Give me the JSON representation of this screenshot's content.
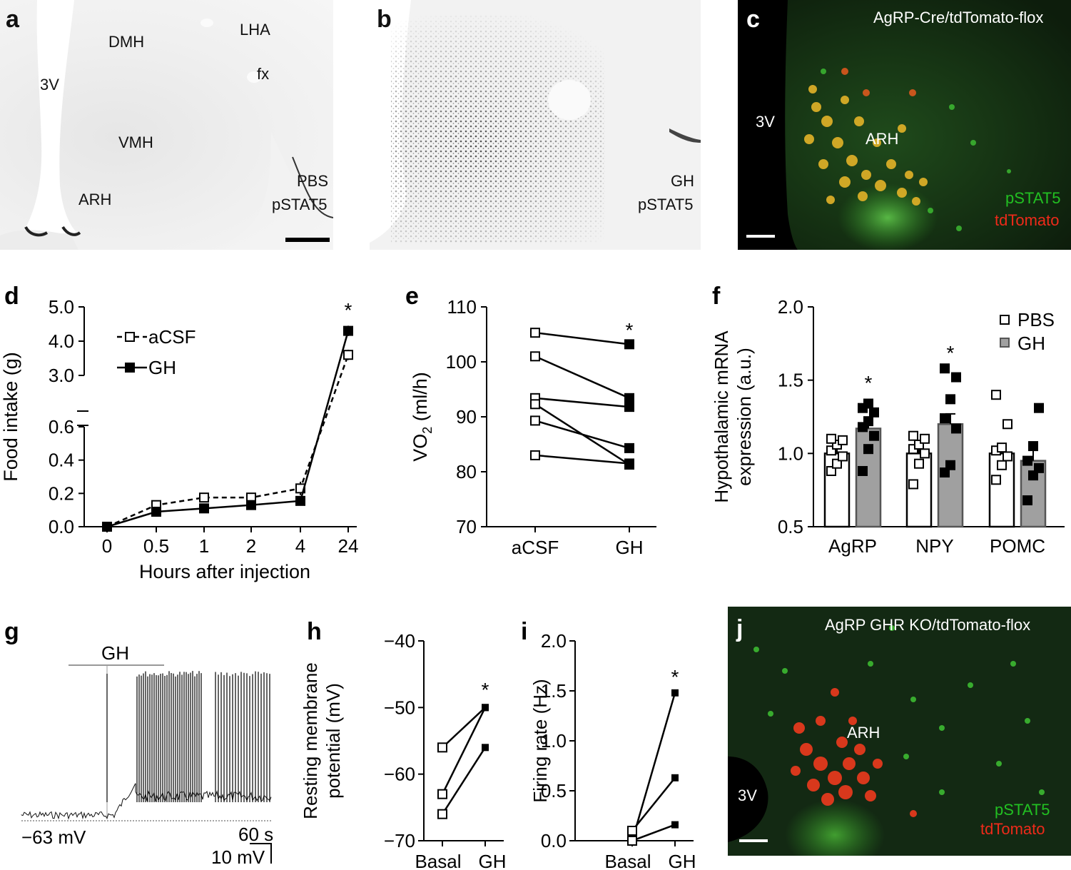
{
  "panels": {
    "a": {
      "letter": "a",
      "labels": {
        "dmh": "DMH",
        "lha": "LHA",
        "fx": "fx",
        "v3": "3V",
        "vmh": "VMH",
        "arh": "ARH",
        "treatment": "PBS",
        "stain": "pSTAT5"
      }
    },
    "b": {
      "letter": "b",
      "labels": {
        "treatment": "GH",
        "stain": "pSTAT5"
      }
    },
    "c": {
      "letter": "c",
      "labels": {
        "genotype": "AgRP-Cre/tdTomato-flox",
        "v3": "3V",
        "arh": "ARH",
        "green": "pSTAT5",
        "red": "tdTomato"
      }
    },
    "d": {
      "letter": "d"
    },
    "e": {
      "letter": "e"
    },
    "f": {
      "letter": "f"
    },
    "g": {
      "letter": "g",
      "gh_bar": "GH",
      "baseline": "−63 mV",
      "time_scale": "60 s",
      "v_scale": "10 mV"
    },
    "h": {
      "letter": "h"
    },
    "i": {
      "letter": "i"
    },
    "j": {
      "letter": "j",
      "labels": {
        "genotype": "AgRP GHR KO/tdTomato-flox",
        "v3": "3V",
        "arh": "ARH",
        "green": "pSTAT5",
        "red": "tdTomato"
      }
    }
  },
  "colors": {
    "green": "#22c022",
    "red": "#ee2a1a",
    "gray_bar": "#a0a0a0"
  },
  "chart_data": [
    {
      "id": "d",
      "type": "line",
      "categories": [
        "0",
        "0.5",
        "1",
        "2",
        "4",
        "24"
      ],
      "ylabel": "Food intake (g)",
      "xlabel": "Hours after injection",
      "ylim": [
        0,
        5.0
      ],
      "y_break": [
        0.6,
        3.0
      ],
      "yticks_lower": [
        "0.0",
        "0.2",
        "0.4",
        "0.6"
      ],
      "yticks_upper": [
        "3.0",
        "4.0",
        "5.0"
      ],
      "series": [
        {
          "name": "aCSF",
          "values": [
            0.0,
            0.13,
            0.175,
            0.175,
            0.23,
            3.6
          ],
          "err": [
            0.01,
            0.015,
            0.02,
            0.02,
            0.04,
            0.15
          ],
          "style": "dashed-open"
        },
        {
          "name": "GH",
          "values": [
            0.0,
            0.09,
            0.11,
            0.13,
            0.155,
            4.3
          ],
          "err": [
            0.01,
            0.01,
            0.01,
            0.01,
            0.01,
            0.15
          ],
          "style": "solid-filled"
        }
      ],
      "annotations": [
        "*"
      ]
    },
    {
      "id": "e",
      "type": "line",
      "categories": [
        "aCSF",
        "GH"
      ],
      "ylabel": "VO2 (ml/h)",
      "ylim": [
        70,
        110
      ],
      "yticks": [
        "70",
        "80",
        "90",
        "100",
        "110"
      ],
      "pairs": [
        [
          105.3,
          103.2
        ],
        [
          101.0,
          93.4
        ],
        [
          93.4,
          91.8
        ],
        [
          92.3,
          81.3
        ],
        [
          89.3,
          84.3
        ],
        [
          83.0,
          81.5
        ]
      ],
      "annotations": [
        "*"
      ]
    },
    {
      "id": "f",
      "type": "bar",
      "categories": [
        "AgRP",
        "NPY",
        "POMC"
      ],
      "ylabel_line1": "Hypothalamic mRNA",
      "ylabel_line2": "expression (a.u.)",
      "ylim": [
        0.5,
        2.0
      ],
      "yticks": [
        "0.5",
        "1.0",
        "1.5",
        "2.0"
      ],
      "series": [
        {
          "name": "PBS",
          "values": [
            1.0,
            1.0,
            1.0
          ],
          "err": [
            0.04,
            0.05,
            0.06
          ],
          "points": [
            [
              0.88,
              0.93,
              0.98,
              1.02,
              1.06,
              1.09,
              1.1
            ],
            [
              0.79,
              0.93,
              1.0,
              1.03,
              1.06,
              1.1,
              1.12
            ],
            [
              0.82,
              0.92,
              0.98,
              1.02,
              1.04,
              1.2,
              1.4
            ]
          ]
        },
        {
          "name": "GH",
          "values": [
            1.17,
            1.2,
            0.95
          ],
          "err": [
            0.06,
            0.07,
            0.08
          ],
          "points": [
            [
              0.88,
              1.03,
              1.12,
              1.18,
              1.22,
              1.28,
              1.31,
              1.34
            ],
            [
              0.87,
              0.92,
              1.17,
              1.24,
              1.37,
              1.52,
              1.58
            ],
            [
              0.68,
              0.85,
              0.9,
              0.95,
              1.05,
              1.31
            ]
          ]
        }
      ],
      "annotations": [
        "*",
        "*"
      ]
    },
    {
      "id": "h",
      "type": "line",
      "categories": [
        "Basal",
        "GH"
      ],
      "ylabel_line1": "Resting membrane",
      "ylabel_line2": "potential (mV)",
      "ylim": [
        -70,
        -40
      ],
      "yticks": [
        "−70",
        "−60",
        "−50",
        "−40"
      ],
      "pairs": [
        [
          -56,
          -50
        ],
        [
          -63,
          -50
        ],
        [
          -66,
          -56
        ]
      ],
      "annotations": [
        "*"
      ]
    },
    {
      "id": "i",
      "type": "line",
      "categories": [
        "Basal",
        "GH"
      ],
      "ylabel": "Firing rate (Hz)",
      "ylim": [
        0,
        2.0
      ],
      "yticks": [
        "0.0",
        "0.5",
        "1.0",
        "1.5",
        "2.0"
      ],
      "pairs": [
        [
          0.0,
          1.48
        ],
        [
          0.1,
          0.63
        ],
        [
          0.0,
          0.16
        ]
      ],
      "annotations": [
        "*"
      ]
    }
  ]
}
